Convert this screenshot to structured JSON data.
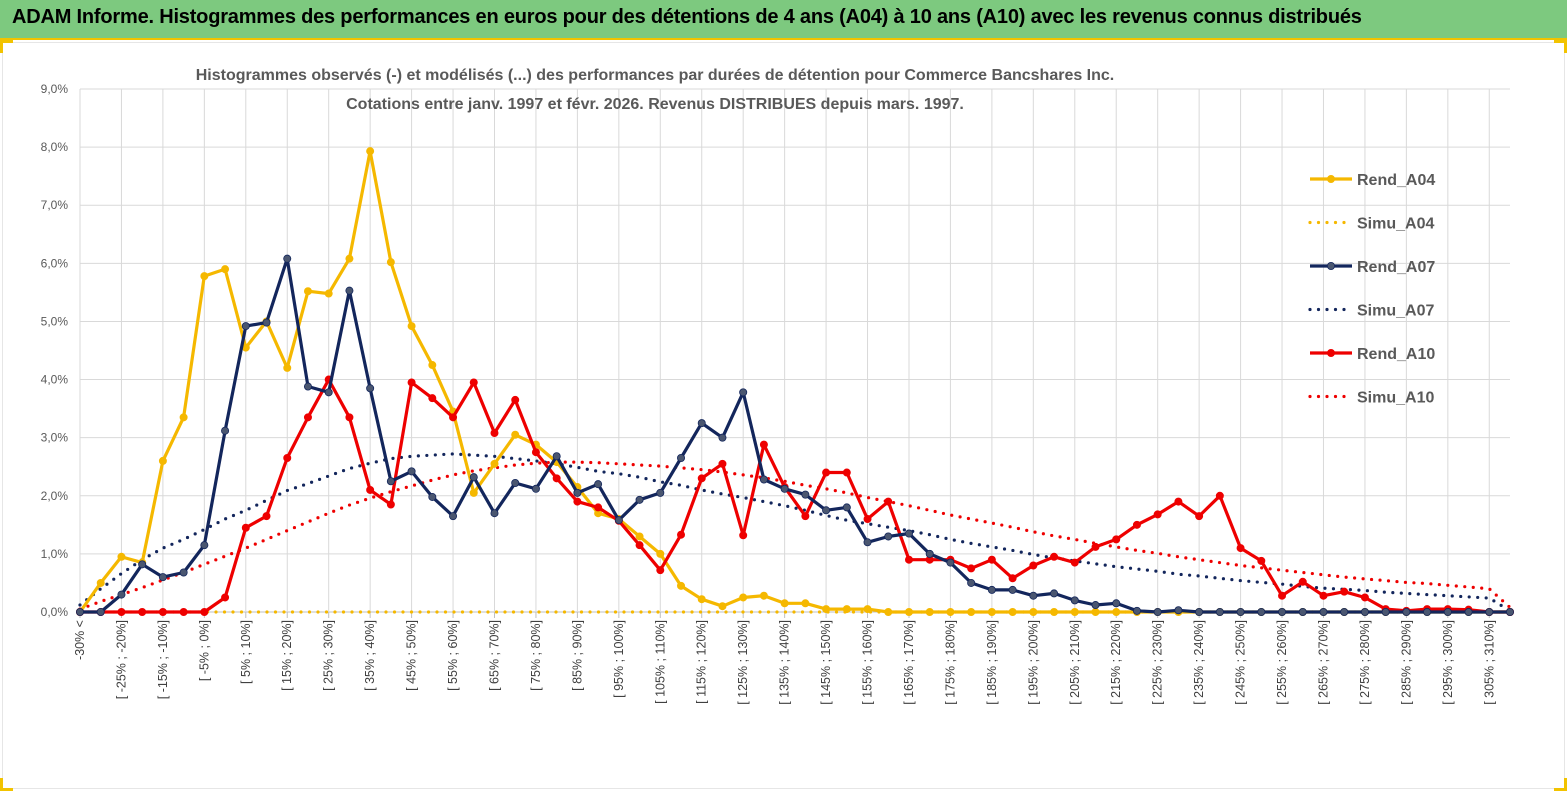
{
  "banner": {
    "title": "ADAM Informe. Histogrammes des performances en euros pour des détentions de 4 ans (A04) à 10 ans (A10) avec les revenus connus distribués"
  },
  "colors": {
    "banner_bg": "#7dc97f",
    "banner_border": "#f2c300",
    "A04": "#f5b800",
    "A07": "#13265c",
    "A07_marker": "#4a5670",
    "A10": "#ee0000",
    "grid": "#d9d9d9"
  },
  "chart_data": {
    "type": "line",
    "title_line1": "Histogrammes observés (-) et modélisés (...) des performances par durées de détention pour Commerce Bancshares Inc.",
    "title_line2": "Cotations entre janv. 1997 et févr. 2026. Revenus DISTRIBUES depuis mars. 1997.",
    "y_ticks": [
      "0,0%",
      "1,0%",
      "2,0%",
      "3,0%",
      "4,0%",
      "5,0%",
      "6,0%",
      "7,0%",
      "8,0%",
      "9,0%"
    ],
    "ylim": [
      0,
      9
    ],
    "grid": true,
    "legend_position": "right",
    "x_labels": [
      "-30% <",
      "[ -25% ; -20%]",
      "[ -15% ; -10%]",
      "[ -5% ; 0%]",
      "[ 5% ; 10%]",
      "[ 15% ; 20%]",
      "[ 25% ; 30%]",
      "[ 35% ; 40%]",
      "[ 45% ; 50%]",
      "[ 55% ; 60%]",
      "[ 65% ; 70%]",
      "[ 75% ; 80%]",
      "[ 85% ; 90%]",
      "[ 95% ; 100%]",
      "[ 105% ; 110%]",
      "[ 115% ; 120%]",
      "[ 125% ; 130%]",
      "[ 135% ; 140%]",
      "[ 145% ; 150%]",
      "[ 155% ; 160%]",
      "[ 165% ; 170%]",
      "[ 175% ; 180%]",
      "[ 185% ; 190%]",
      "[ 195% ; 200%]",
      "[ 205% ; 210%]",
      "[ 215% ; 220%]",
      "[ 225% ; 230%]",
      "[ 235% ; 240%]",
      "[ 245% ; 250%]",
      "[ 255% ; 260%]",
      "[ 265% ; 270%]",
      "[ 275% ; 280%]",
      "[ 285% ; 290%]",
      "[ 295% ; 300%]",
      "[ 305% ; 310%]"
    ],
    "n_points": 70,
    "series": [
      {
        "name": "Rend_A04",
        "style": "solid",
        "color": "#f5b800",
        "values": [
          0,
          0.5,
          0.95,
          0.85,
          2.6,
          3.35,
          5.78,
          5.9,
          4.55,
          5.0,
          4.2,
          5.52,
          5.48,
          6.08,
          7.93,
          6.02,
          4.92,
          4.25,
          3.45,
          2.05,
          2.55,
          3.05,
          2.88,
          2.58,
          2.15,
          1.7,
          1.6,
          1.3,
          1.0,
          0.45,
          0.22,
          0.1,
          0.25,
          0.28,
          0.15,
          0.15,
          0.05,
          0.05,
          0.05,
          0,
          0,
          0,
          0,
          0,
          0,
          0,
          0,
          0,
          0,
          0,
          0,
          0,
          0,
          0,
          0,
          0,
          0,
          0,
          0,
          0,
          0,
          0,
          0,
          0,
          0,
          0,
          0,
          0,
          0,
          0
        ]
      },
      {
        "name": "Simu_A04",
        "style": "dotted",
        "color": "#f5b800",
        "values": [
          0,
          0,
          0,
          0,
          0,
          0,
          0,
          0,
          0,
          0,
          0,
          0,
          0,
          0,
          0,
          0,
          0,
          0,
          0,
          0,
          0,
          0,
          0,
          0,
          0,
          0,
          0,
          0,
          0,
          0,
          0,
          0,
          0,
          0,
          0,
          0,
          0,
          0,
          0,
          0,
          0,
          0,
          0,
          0,
          0,
          0,
          0,
          0,
          0,
          0,
          0,
          0,
          0,
          0,
          0,
          0,
          0,
          0,
          0,
          0,
          0,
          0,
          0,
          0,
          0,
          0,
          0,
          0,
          0,
          0
        ]
      },
      {
        "name": "Rend_A07",
        "style": "solid",
        "color": "#13265c",
        "values": [
          0,
          0,
          0.3,
          0.82,
          0.6,
          0.68,
          1.15,
          3.12,
          4.92,
          4.98,
          6.08,
          3.88,
          3.78,
          5.53,
          3.85,
          2.25,
          2.42,
          1.98,
          1.65,
          2.32,
          1.7,
          2.22,
          2.12,
          2.68,
          2.05,
          2.2,
          1.58,
          1.93,
          2.05,
          2.65,
          3.25,
          3.0,
          3.78,
          2.28,
          2.12,
          2.02,
          1.75,
          1.8,
          1.2,
          1.3,
          1.35,
          1.0,
          0.85,
          0.5,
          0.38,
          0.38,
          0.28,
          0.32,
          0.2,
          0.12,
          0.15,
          0.02,
          0,
          0.03,
          0,
          0,
          0,
          0,
          0,
          0,
          0,
          0,
          0,
          0,
          0,
          0,
          0,
          0,
          0,
          0
        ]
      },
      {
        "name": "Simu_A07",
        "style": "dotted",
        "color": "#13265c",
        "values": [
          0.12,
          0.4,
          0.66,
          0.9,
          1.1,
          1.25,
          1.42,
          1.6,
          1.75,
          1.92,
          2.09,
          2.21,
          2.34,
          2.47,
          2.56,
          2.64,
          2.68,
          2.7,
          2.72,
          2.7,
          2.68,
          2.64,
          2.6,
          2.55,
          2.49,
          2.42,
          2.38,
          2.32,
          2.24,
          2.18,
          2.1,
          2.03,
          1.97,
          1.9,
          1.83,
          1.75,
          1.66,
          1.58,
          1.52,
          1.46,
          1.4,
          1.33,
          1.25,
          1.18,
          1.12,
          1.06,
          0.99,
          0.93,
          0.88,
          0.83,
          0.78,
          0.74,
          0.7,
          0.65,
          0.62,
          0.58,
          0.54,
          0.51,
          0.48,
          0.44,
          0.41,
          0.39,
          0.37,
          0.34,
          0.32,
          0.3,
          0.28,
          0.26,
          0.24,
          0.02
        ]
      },
      {
        "name": "Rend_A10",
        "style": "solid",
        "color": "#ee0000",
        "values": [
          0,
          0,
          0,
          0,
          0,
          0,
          0,
          0.25,
          1.45,
          1.65,
          2.65,
          3.35,
          4.0,
          3.35,
          2.1,
          1.85,
          3.95,
          3.68,
          3.35,
          3.95,
          3.08,
          3.65,
          2.75,
          2.3,
          1.9,
          1.8,
          1.57,
          1.15,
          0.72,
          1.33,
          2.3,
          2.55,
          1.32,
          2.88,
          2.15,
          1.65,
          2.4,
          2.4,
          1.6,
          1.9,
          0.9,
          0.9,
          0.9,
          0.75,
          0.9,
          0.58,
          0.8,
          0.95,
          0.85,
          1.12,
          1.25,
          1.5,
          1.68,
          1.9,
          1.65,
          2.0,
          1.1,
          0.88,
          0.28,
          0.52,
          0.28,
          0.35,
          0.25,
          0.05,
          0.02,
          0.05,
          0.05,
          0.04,
          0,
          0
        ]
      },
      {
        "name": "Simu_A10",
        "style": "dotted",
        "color": "#ee0000",
        "values": [
          0.05,
          0.18,
          0.3,
          0.42,
          0.55,
          0.68,
          0.82,
          0.96,
          1.1,
          1.25,
          1.4,
          1.55,
          1.7,
          1.84,
          1.96,
          2.07,
          2.17,
          2.27,
          2.36,
          2.43,
          2.48,
          2.53,
          2.56,
          2.58,
          2.58,
          2.57,
          2.55,
          2.53,
          2.51,
          2.48,
          2.45,
          2.41,
          2.36,
          2.31,
          2.25,
          2.18,
          2.12,
          2.05,
          1.97,
          1.9,
          1.83,
          1.75,
          1.67,
          1.6,
          1.53,
          1.46,
          1.38,
          1.31,
          1.25,
          1.18,
          1.12,
          1.06,
          1.01,
          0.95,
          0.9,
          0.85,
          0.8,
          0.76,
          0.72,
          0.68,
          0.64,
          0.6,
          0.57,
          0.54,
          0.51,
          0.49,
          0.46,
          0.43,
          0.4,
          0.08
        ]
      }
    ]
  }
}
